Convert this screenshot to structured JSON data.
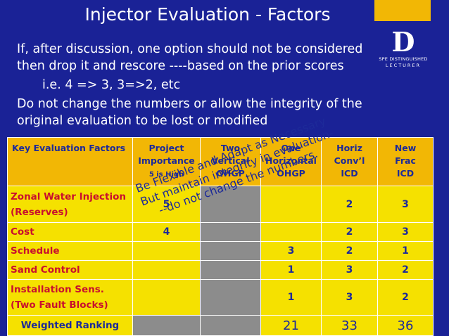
{
  "title": "Injector Evaluation - Factors",
  "logo": {
    "letter": "D",
    "line1": "SPE DISTINGUISHED",
    "line2": "LECTURER"
  },
  "body": {
    "p1_line1": "If, after discussion, one option should not be considered",
    "p1_line2": "then drop it and rescore ----based on the prior scores",
    "p2": "i.e. 4 => 3, 3=>2, etc",
    "p3_line1": "Do not change the numbers or allow the integrity of the",
    "p3_line2": "original evaluation to be lost or modified"
  },
  "table": {
    "headers": [
      {
        "lines": [
          "Key Evaluation Factors"
        ]
      },
      {
        "lines": [
          "Project",
          "Importance"
        ],
        "sub": "5 is High"
      },
      {
        "lines": [
          "Two",
          "Vertical",
          "OHGP"
        ]
      },
      {
        "lines": [
          "One",
          "Horizontal",
          "OHGP"
        ]
      },
      {
        "lines": [
          "Horiz",
          "Conv’l",
          "ICD"
        ]
      },
      {
        "lines": [
          "New",
          "Frac",
          "ICD"
        ]
      }
    ],
    "rows": [
      {
        "label_lines": [
          "Zonal Water Injection",
          "(Reserves)"
        ],
        "importance": "5",
        "two_vertical": "",
        "one_horizontal": "",
        "horiz_convl": "2",
        "new_frac": "3"
      },
      {
        "label_lines": [
          "Cost"
        ],
        "importance": "4",
        "two_vertical": "",
        "one_horizontal": "",
        "horiz_convl": "2",
        "new_frac": "3"
      },
      {
        "label_lines": [
          "Schedule"
        ],
        "importance": "",
        "two_vertical": "",
        "one_horizontal": "3",
        "horiz_convl": "2",
        "new_frac": "1"
      },
      {
        "label_lines": [
          "Sand Control"
        ],
        "importance": "",
        "two_vertical": "",
        "one_horizontal": "1",
        "horiz_convl": "3",
        "new_frac": "2"
      },
      {
        "label_lines": [
          "Installation Sens.",
          "(Two Fault Blocks)"
        ],
        "importance": "",
        "two_vertical": "",
        "one_horizontal": "1",
        "horiz_convl": "3",
        "new_frac": "2"
      }
    ],
    "weighted": {
      "label": "Weighted Ranking",
      "one_horizontal": "21",
      "horiz_convl": "33",
      "new_frac": "36"
    }
  },
  "overlay_lines": [
    "Be Flexible and Adapt as Necessary",
    "But maintain integrity in evaluation-",
    "--do not change the numbers."
  ],
  "colors": {
    "background": "#1a2296",
    "gold": "#f2b705",
    "yellow": "#f5e100",
    "navy_text": "#1d2a99",
    "red_text": "#c8102e",
    "gray": "#8c8c8c"
  }
}
